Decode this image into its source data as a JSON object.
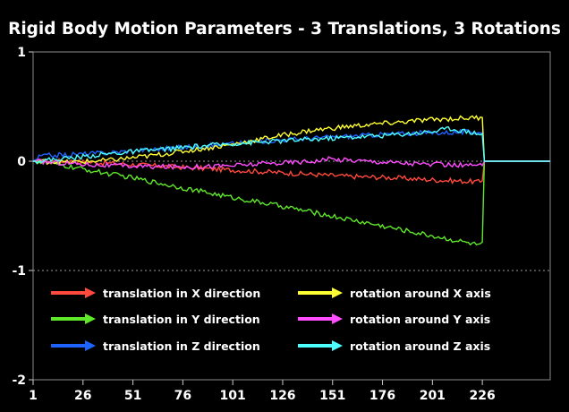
{
  "chart_data": {
    "type": "line",
    "title": "Rigid Body Motion Parameters - 3 Translations, 3 Rotations",
    "xlabel": "",
    "ylabel": "",
    "xlim": [
      1,
      260
    ],
    "ylim": [
      -2,
      1
    ],
    "x_ticks": [
      1,
      26,
      51,
      76,
      101,
      126,
      151,
      176,
      201,
      226
    ],
    "y_ticks": [
      1,
      0,
      -1,
      -2
    ],
    "grid": "dotted horizontal at y = 0 and y = -1",
    "legend_placement": "lower inside, two columns",
    "series": [
      {
        "name": "translation in X direction",
        "color": "#ff4a3d",
        "points": [
          [
            1,
            0
          ],
          [
            20,
            0.0
          ],
          [
            40,
            -0.02
          ],
          [
            60,
            -0.04
          ],
          [
            80,
            -0.06
          ],
          [
            100,
            -0.08
          ],
          [
            120,
            -0.1
          ],
          [
            140,
            -0.12
          ],
          [
            160,
            -0.14
          ],
          [
            180,
            -0.15
          ],
          [
            200,
            -0.17
          ],
          [
            225,
            -0.19
          ],
          [
            226,
            -0.18
          ],
          [
            227,
            0
          ],
          [
            260,
            0
          ]
        ]
      },
      {
        "name": "translation in Y direction",
        "color": "#5fe82a",
        "points": [
          [
            1,
            0
          ],
          [
            10,
            -0.02
          ],
          [
            25,
            -0.07
          ],
          [
            50,
            -0.15
          ],
          [
            75,
            -0.24
          ],
          [
            100,
            -0.33
          ],
          [
            125,
            -0.41
          ],
          [
            150,
            -0.5
          ],
          [
            175,
            -0.59
          ],
          [
            200,
            -0.68
          ],
          [
            225,
            -0.77
          ],
          [
            226,
            -0.74
          ],
          [
            227,
            0
          ],
          [
            260,
            0
          ]
        ]
      },
      {
        "name": "translation in Z direction",
        "color": "#1f63ff",
        "points": [
          [
            1,
            0
          ],
          [
            5,
            0.05
          ],
          [
            20,
            0.06
          ],
          [
            40,
            0.08
          ],
          [
            60,
            0.11
          ],
          [
            80,
            0.13
          ],
          [
            100,
            0.16
          ],
          [
            120,
            0.19
          ],
          [
            140,
            0.21
          ],
          [
            160,
            0.23
          ],
          [
            180,
            0.25
          ],
          [
            200,
            0.26
          ],
          [
            225,
            0.27
          ],
          [
            226,
            0.26
          ],
          [
            227,
            0
          ],
          [
            260,
            0
          ]
        ]
      },
      {
        "name": "rotation around X axis",
        "color": "#ffff33",
        "points": [
          [
            1,
            0
          ],
          [
            20,
            -0.01
          ],
          [
            40,
            0.01
          ],
          [
            60,
            0.05
          ],
          [
            80,
            0.1
          ],
          [
            100,
            0.15
          ],
          [
            120,
            0.22
          ],
          [
            140,
            0.28
          ],
          [
            160,
            0.32
          ],
          [
            180,
            0.35
          ],
          [
            200,
            0.38
          ],
          [
            225,
            0.4
          ],
          [
            226,
            0.4
          ],
          [
            227,
            0
          ],
          [
            260,
            0
          ]
        ]
      },
      {
        "name": "rotation around Y axis",
        "color": "#ff4dff",
        "points": [
          [
            1,
            0
          ],
          [
            20,
            -0.02
          ],
          [
            40,
            -0.04
          ],
          [
            60,
            -0.05
          ],
          [
            80,
            -0.05
          ],
          [
            100,
            -0.04
          ],
          [
            120,
            -0.02
          ],
          [
            140,
            0
          ],
          [
            150,
            0.02
          ],
          [
            160,
            0.01
          ],
          [
            180,
            -0.01
          ],
          [
            200,
            -0.03
          ],
          [
            225,
            -0.04
          ],
          [
            226,
            -0.04
          ],
          [
            227,
            0
          ],
          [
            260,
            0
          ]
        ]
      },
      {
        "name": "rotation around Z axis",
        "color": "#4dffff",
        "points": [
          [
            1,
            0
          ],
          [
            20,
            0.03
          ],
          [
            40,
            0.07
          ],
          [
            60,
            0.1
          ],
          [
            80,
            0.13
          ],
          [
            100,
            0.16
          ],
          [
            120,
            0.18
          ],
          [
            140,
            0.2
          ],
          [
            160,
            0.22
          ],
          [
            180,
            0.24
          ],
          [
            200,
            0.27
          ],
          [
            210,
            0.3
          ],
          [
            225,
            0.25
          ],
          [
            226,
            0.25
          ],
          [
            227,
            0
          ],
          [
            260,
            0
          ]
        ]
      }
    ]
  }
}
